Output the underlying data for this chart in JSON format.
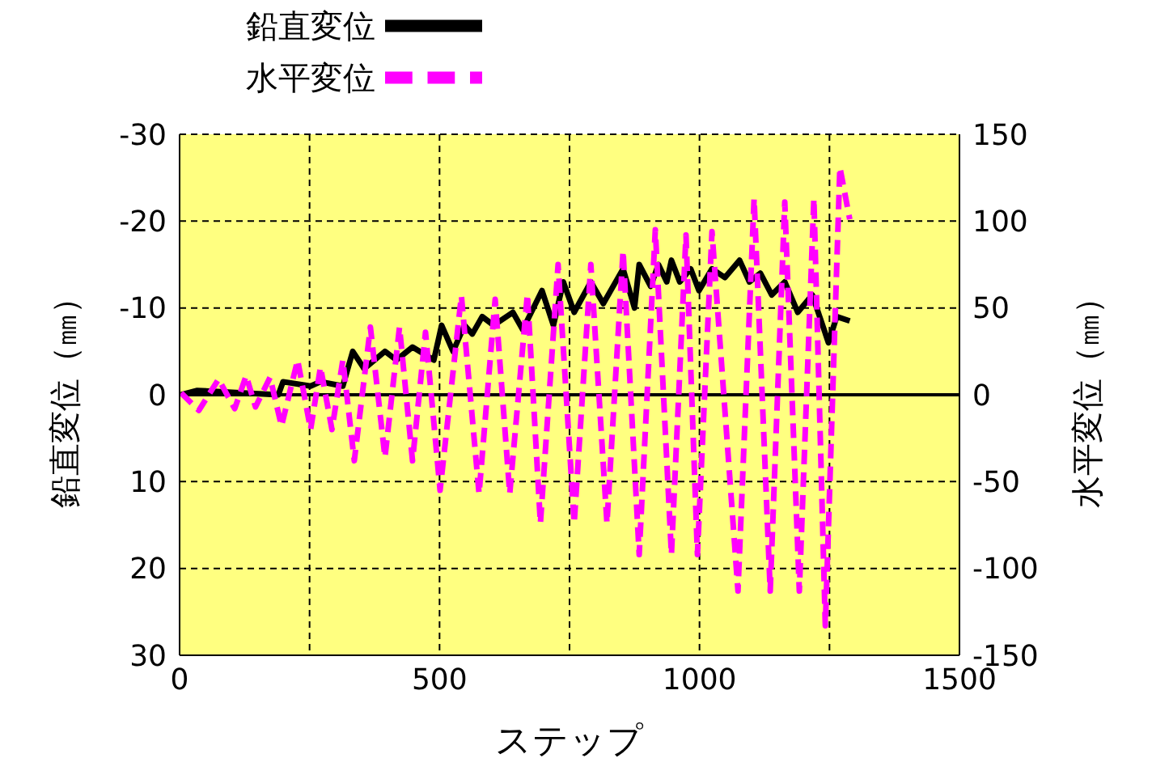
{
  "chart_data": {
    "type": "line",
    "xlabel": "ステップ",
    "ylabel": "鉛直変位（㎜）",
    "y2label": "水平変位（㎜）",
    "xlim": [
      0,
      1500
    ],
    "xticks": [
      0,
      {
        "value": 250,
        "label": null
      },
      500,
      {
        "value": 750,
        "label": null
      },
      1000,
      {
        "value": 1250,
        "label": null
      },
      1500
    ],
    "ylim": [
      30,
      -30
    ],
    "yticks": [
      -30,
      -20,
      -10,
      0,
      10,
      20,
      30
    ],
    "y2lim": [
      -150,
      150
    ],
    "y2ticks": [
      -150,
      -100,
      -50,
      0,
      50,
      100,
      150
    ],
    "grid": true,
    "legend": "top left",
    "marker": "none",
    "ref_lines": [
      {
        "axis": "y",
        "value": 0,
        "color": "#000000",
        "line_style": "solid"
      }
    ],
    "series": [
      {
        "name": "鉛直変位",
        "color": "#000000",
        "line_style": "solid",
        "x": [
          3,
          34,
          190,
          199,
          252,
          271,
          314,
          333,
          355,
          395,
          417,
          448,
          489,
          504,
          526,
          548,
          563,
          582,
          604,
          641,
          660,
          697,
          719,
          738,
          759,
          791,
          815,
          853,
          875,
          884,
          906,
          921,
          937,
          946,
          962,
          983,
          999,
          1024,
          1049,
          1077,
          1096,
          1117,
          1139,
          1164,
          1189,
          1217,
          1248,
          1264,
          1289
        ],
        "values": [
          0,
          -0.5,
          0,
          -1.5,
          -1,
          -1.5,
          -1,
          -5,
          -3,
          -5,
          -4,
          -5.5,
          -4,
          -8,
          -5,
          -8,
          -7,
          -9,
          -8,
          -9.5,
          -7.5,
          -12,
          -8,
          -13,
          -9.5,
          -13,
          -10.5,
          -14.5,
          -10,
          -15,
          -12.5,
          -15,
          -13,
          -15.5,
          -13,
          -14.5,
          -12,
          -14.5,
          -13.5,
          -15.5,
          -13,
          -14,
          -11.5,
          -13,
          -9.5,
          -11.5,
          -6,
          -9,
          -8.5
        ]
      },
      {
        "name": "水平変位",
        "color": "#ff00ff",
        "line_style": "dashed",
        "axis": "y2",
        "x": [
          3,
          37,
          75,
          106,
          128,
          146,
          174,
          196,
          227,
          252,
          271,
          293,
          314,
          336,
          367,
          395,
          423,
          448,
          473,
          501,
          542,
          576,
          607,
          635,
          669,
          694,
          728,
          759,
          791,
          822,
          853,
          884,
          915,
          946,
          974,
          996,
          1024,
          1074,
          1105,
          1136,
          1164,
          1192,
          1220,
          1242,
          1270,
          1289
        ],
        "values": [
          1,
          -9,
          9,
          -8,
          11,
          -7,
          10,
          -18,
          20,
          -20,
          16,
          -20,
          20,
          -38,
          39,
          -36,
          39,
          -38,
          36,
          -55,
          57,
          -57,
          55,
          -57,
          58,
          -74,
          75,
          -74,
          75,
          -74,
          83,
          -92,
          95,
          -92,
          92,
          -92,
          94,
          -113,
          113,
          -113,
          111,
          -113,
          113,
          -133,
          131,
          101
        ]
      }
    ]
  }
}
